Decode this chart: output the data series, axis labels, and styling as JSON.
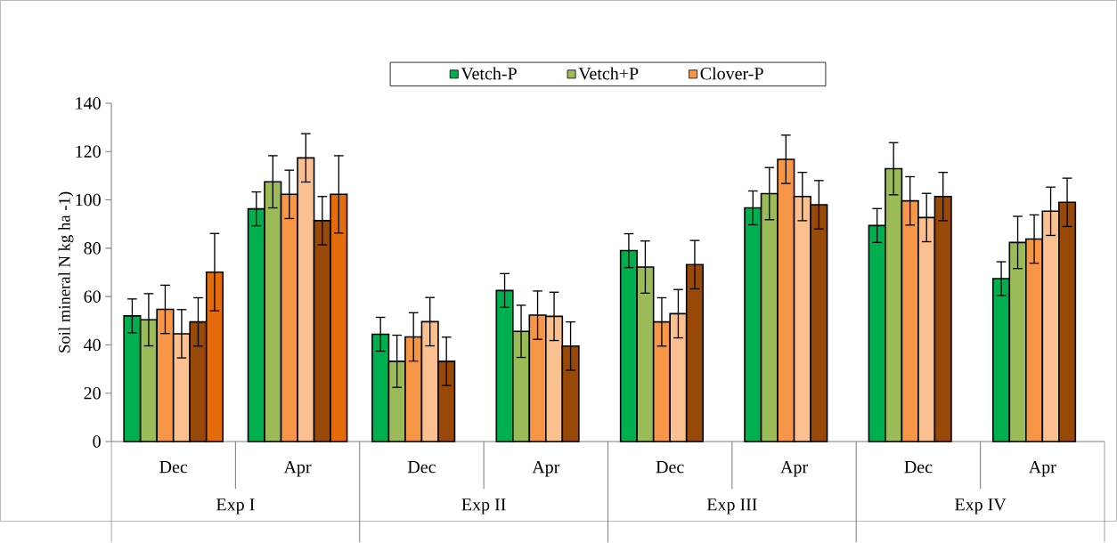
{
  "chart_data": {
    "type": "bar",
    "ylabel": "Soil mineral N kg ha -1)",
    "categories": [
      "Dec",
      "Apr",
      "Dec",
      "Apr",
      "Dec",
      "Apr",
      "Dec",
      "Apr"
    ],
    "annotations": [
      "Exp I",
      "Exp II",
      "Exp III",
      "Exp IV"
    ],
    "series": [
      {
        "name": "Vetch-P",
        "color": "#00b050",
        "values": [
          52.0,
          96.3,
          44.4,
          62.5,
          79.0,
          96.7,
          89.4,
          67.4
        ],
        "errors": [
          7,
          7,
          7,
          7,
          7,
          7,
          7,
          7
        ]
      },
      {
        "name": "Vetch+P",
        "color": "#9bbb59",
        "values": [
          50.4,
          107.5,
          33.2,
          45.6,
          72.2,
          102.6,
          112.9,
          82.4
        ],
        "errors": [
          10.8,
          10.8,
          10.8,
          10.8,
          10.8,
          10.8,
          10.8,
          10.8
        ]
      },
      {
        "name": "Clover-P",
        "color": "#f79646",
        "values": [
          54.7,
          102.3,
          43.3,
          52.3,
          49.5,
          116.8,
          99.6,
          83.8
        ],
        "errors": [
          10,
          10,
          10,
          10,
          10,
          10,
          10,
          10
        ]
      },
      {
        "color": "#fac090",
        "values": [
          44.6,
          117.4,
          49.6,
          51.8,
          52.9,
          101.4,
          92.7,
          95.3
        ],
        "errors": [
          10,
          10,
          10,
          10,
          10,
          10,
          10,
          10
        ]
      },
      {
        "color": "#984807",
        "values": [
          49.5,
          91.4,
          33.2,
          39.5,
          73.2,
          98.0,
          101.4,
          99.0
        ],
        "errors": [
          10,
          10,
          10,
          10,
          10,
          10,
          10,
          10
        ]
      },
      {
        "color": "#e46c0a",
        "values": [
          70.1,
          102.3,
          null,
          null,
          null,
          null,
          null,
          null
        ],
        "errors": [
          16,
          16,
          null,
          null,
          null,
          null,
          null,
          null
        ]
      }
    ],
    "ylim": [
      0,
      140
    ],
    "yticks": [
      0,
      20,
      40,
      60,
      80,
      100,
      120,
      140
    ],
    "legend": "top"
  }
}
